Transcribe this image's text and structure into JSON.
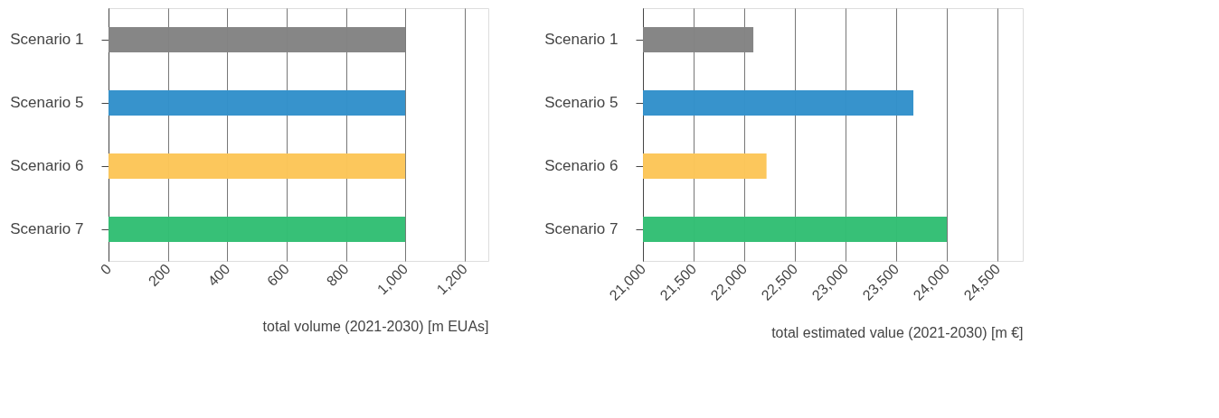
{
  "chart_data": [
    {
      "type": "bar",
      "orientation": "horizontal",
      "categories": [
        "Scenario 1",
        "Scenario 5",
        "Scenario 6",
        "Scenario 7"
      ],
      "values": [
        1000,
        1000,
        1000,
        1000
      ],
      "colors": [
        "#848484",
        "#3391cb",
        "#fcc659",
        "#33bf74"
      ],
      "xlim": [
        0,
        1280
      ],
      "xticks": [
        0,
        200,
        400,
        600,
        800,
        {
          "value": 1000,
          "label": "1,000"
        },
        {
          "value": 1200,
          "label": "1,200"
        }
      ],
      "xlabel": "total volume (2021-2030) [m EUAs]",
      "grid": "x"
    },
    {
      "type": "bar",
      "orientation": "horizontal",
      "categories": [
        "Scenario 1",
        "Scenario 5",
        "Scenario 6",
        "Scenario 7"
      ],
      "values": [
        22090,
        23670,
        22220,
        24000
      ],
      "colors": [
        "#848484",
        "#3391cb",
        "#fcc659",
        "#33bf74"
      ],
      "xlim": [
        21000,
        24750
      ],
      "xticks": [
        {
          "value": 21000,
          "label": "21,000"
        },
        {
          "value": 21500,
          "label": "21,500"
        },
        {
          "value": 22000,
          "label": "22,000"
        },
        {
          "value": 22500,
          "label": "22,500"
        },
        {
          "value": 23000,
          "label": "23,000"
        },
        {
          "value": 23500,
          "label": "23,500"
        },
        {
          "value": 24000,
          "label": "24,000"
        },
        {
          "value": 24500,
          "label": "24,500"
        }
      ],
      "xlabel": "total estimated value (2021-2030) [m €]",
      "grid": "x"
    }
  ]
}
